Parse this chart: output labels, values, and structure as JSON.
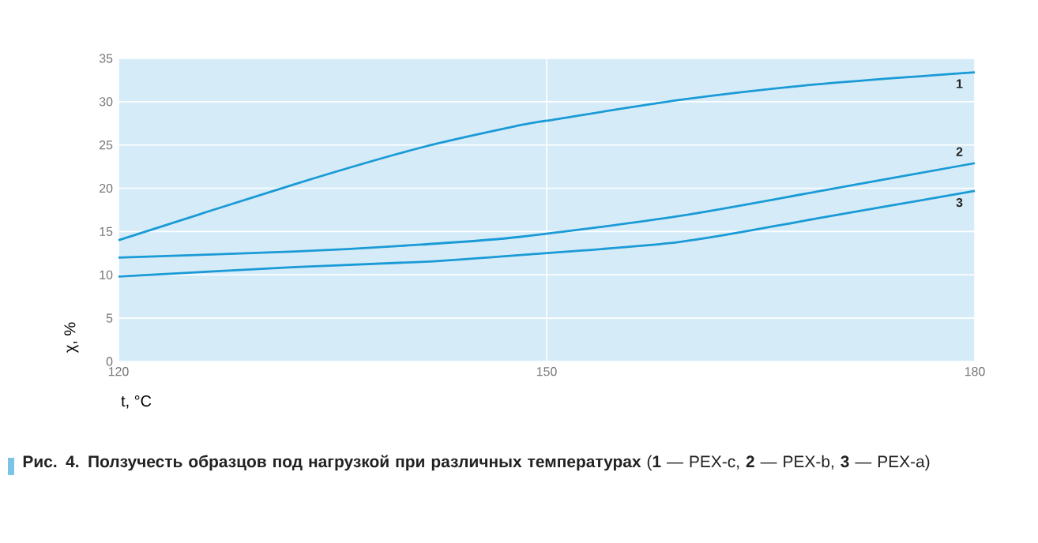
{
  "chart_data": {
    "type": "line",
    "title": "Рис. 4. Ползучесть образцов под нагрузкой при различных температурах",
    "xlabel": "t, °C",
    "ylabel": "χ, %",
    "annotations": [
      "(**1** — PEX-c, **2** — PEX-b, **3** — PEX-a)"
    ],
    "xlim": [
      120,
      180
    ],
    "xticks": [
      120,
      150,
      180
    ],
    "ylim": [
      0,
      35
    ],
    "yticks": [
      0,
      5,
      10,
      15,
      20,
      25,
      30,
      35
    ],
    "grid": true,
    "series": [
      {
        "name": "1",
        "color": "#1a9ad6",
        "x": [
          120,
          132.4,
          141.2,
          148.2,
          150,
          159.3,
          168.9,
          180
        ],
        "values": [
          14,
          20.5,
          24.7,
          27.3,
          27.8,
          30.2,
          32,
          33.4
        ]
      },
      {
        "name": "2",
        "color": "#1a9ad6",
        "x": [
          120,
          132.4,
          141.2,
          148.2,
          159.3,
          168.9,
          180
        ],
        "values": [
          12,
          12.7,
          13.5,
          14.4,
          16.8,
          19.6,
          22.9
        ]
      },
      {
        "name": "3",
        "color": "#1a9ad6",
        "x": [
          120,
          132.4,
          141.2,
          148.2,
          159.3,
          168.9,
          180
        ],
        "values": [
          9.8,
          10.9,
          11.5,
          12.3,
          13.8,
          16.5,
          19.7
        ]
      }
    ]
  }
}
